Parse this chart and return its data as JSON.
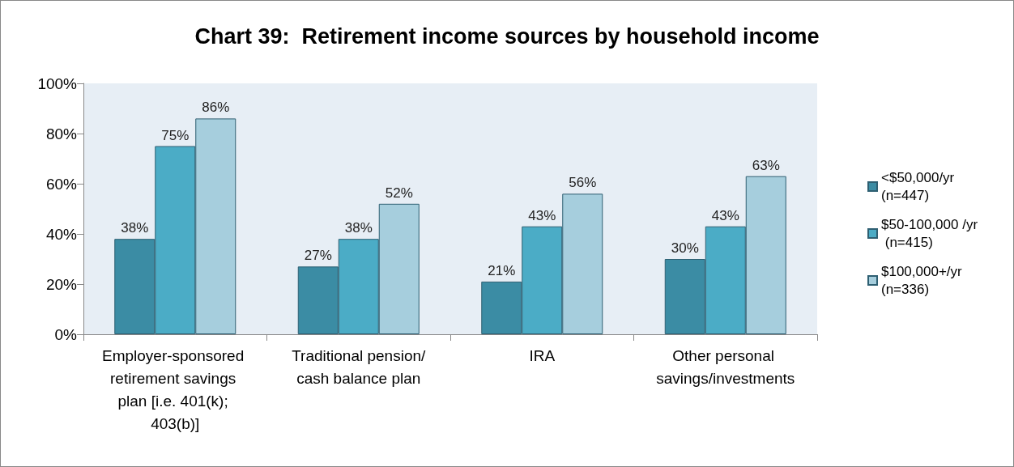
{
  "chart_data": {
    "type": "bar",
    "title": "Chart 39:  Retirement income sources by household income",
    "categories": [
      "Employer-sponsored retirement savings plan [i.e. 401(k); 403(b)]",
      "Traditional pension/cash balance plan",
      "IRA",
      "Other personal savings/investments"
    ],
    "series": [
      {
        "name": "<$50,000/yr (n=447)",
        "color": "#3b8ca4",
        "values": [
          38,
          27,
          21,
          30
        ],
        "value_labels": [
          "38%",
          "27%",
          "21%",
          "30%"
        ]
      },
      {
        "name": "$50-100,000 /yr (n=415)",
        "color": "#4bacc6",
        "values": [
          75,
          38,
          43,
          43
        ],
        "value_labels": [
          "75%",
          "38%",
          "43%",
          "43%"
        ]
      },
      {
        "name": "$100,000+/yr (n=336)",
        "color": "#a6cedd",
        "values": [
          86,
          52,
          56,
          63
        ],
        "value_labels": [
          "86%",
          "52%",
          "56%",
          "63%"
        ]
      }
    ],
    "ylim": [
      0,
      100
    ],
    "yticks": [
      {
        "value": 0,
        "label": "0%"
      },
      {
        "value": 20,
        "label": "20%"
      },
      {
        "value": 40,
        "label": "40%"
      },
      {
        "value": 60,
        "label": "60%"
      },
      {
        "value": 80,
        "label": "80%"
      },
      {
        "value": 100,
        "label": "100%"
      }
    ],
    "grid": false,
    "legend": "right"
  }
}
